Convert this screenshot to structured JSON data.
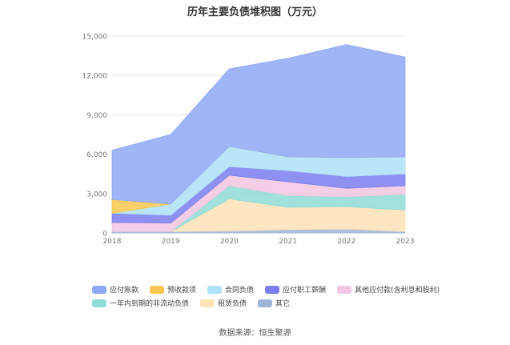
{
  "chart_data": {
    "type": "area",
    "title": "历年主要负债堆积图（万元）",
    "categories": [
      "2018",
      "2019",
      "2020",
      "2021",
      "2022",
      "2023"
    ],
    "ylim": [
      0,
      15000
    ],
    "yticks": [
      "0",
      "3,000",
      "6,000",
      "9,000",
      "12,000",
      "15,000"
    ],
    "grid": true,
    "stacked": true,
    "legend_position": "bottom",
    "series": [
      {
        "name": "应付账款",
        "color": "#8fa8f6",
        "values": [
          3750,
          5300,
          5900,
          7500,
          8600,
          7600
        ]
      },
      {
        "name": "预收款项",
        "color": "#f9c74f",
        "values": [
          1050,
          0,
          0,
          0,
          0,
          0
        ]
      },
      {
        "name": "合同负债",
        "color": "#aee0f7",
        "values": [
          0,
          850,
          1550,
          1050,
          1450,
          1300
        ]
      },
      {
        "name": "应付职工薪酬",
        "color": "#7b7ef0",
        "values": [
          700,
          600,
          650,
          850,
          900,
          900
        ]
      },
      {
        "name": "其他应付款(含利息和股利)",
        "color": "#f2c6e1",
        "values": [
          700,
          650,
          800,
          1050,
          650,
          650
        ]
      },
      {
        "name": "一年内到期的非流动负债",
        "color": "#8fdcd6",
        "values": [
          0,
          0,
          1000,
          900,
          750,
          1200
        ]
      },
      {
        "name": "租赁负债",
        "color": "#fde2b6",
        "values": [
          0,
          0,
          2450,
          1700,
          1700,
          1650
        ]
      },
      {
        "name": "其它",
        "color": "#9fb4d9",
        "values": [
          100,
          100,
          150,
          250,
          300,
          100
        ]
      }
    ]
  },
  "source": "数据来源：恒生聚源"
}
